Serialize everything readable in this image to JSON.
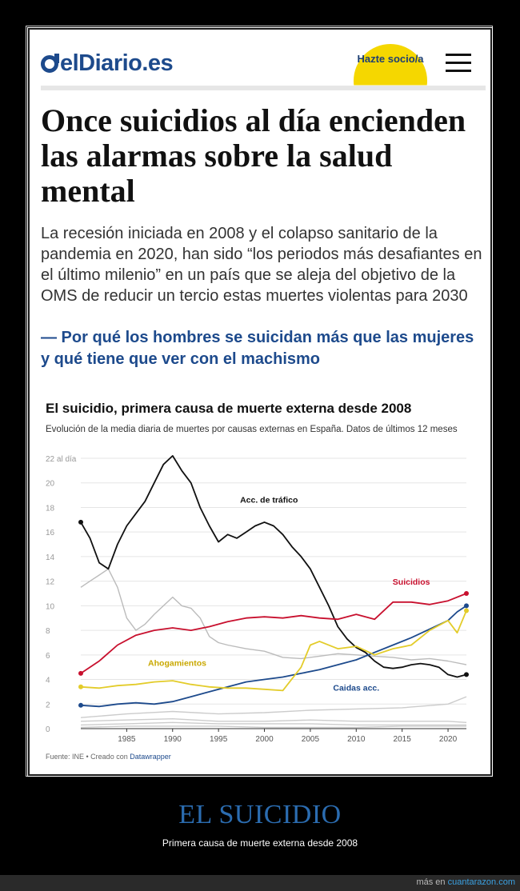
{
  "header": {
    "logo_text": "elDiario.es",
    "subscribe_label": "Hazte socio/a"
  },
  "article": {
    "headline": "Once suicidios al día encienden las alarmas sobre la salud mental",
    "lead": "La recesión iniciada en 2008 y el colapso sanitario de la pandemia en 2020, han sido “los periodos más desafiantes en el último milenio” en un país que se aleja del objetivo de la OMS de reducir un tercio estas muertes violentas para 2030",
    "related": "— Por qué los hombres se suicidan más que las mujeres y qué tiene que ver con el machismo"
  },
  "chart_data": {
    "type": "line",
    "title": "El suicidio, primera causa de muerte externa desde 2008",
    "subtitle": "Evolución de la media diaria de muertes por causas externas en España. Datos de últimos 12 meses",
    "x_ticks": [
      "1985",
      "1990",
      "1995",
      "2000",
      "2005",
      "2010",
      "2015",
      "2020"
    ],
    "y_ticks": [
      "0",
      "2",
      "4",
      "6",
      "8",
      "10",
      "12",
      "14",
      "16",
      "18",
      "20",
      "22 al día"
    ],
    "xlim": [
      1980,
      2022
    ],
    "ylim": [
      0,
      22
    ],
    "series": [
      {
        "name": "Acc. de tráfico",
        "color": "#111111",
        "x": [
          1980,
          1981,
          1982,
          1983,
          1984,
          1985,
          1986,
          1987,
          1988,
          1989,
          1990,
          1991,
          1992,
          1993,
          1994,
          1995,
          1996,
          1997,
          1998,
          1999,
          2000,
          2001,
          2002,
          2003,
          2004,
          2005,
          2006,
          2007,
          2008,
          2009,
          2010,
          2011,
          2012,
          2013,
          2014,
          2015,
          2016,
          2017,
          2018,
          2019,
          2020,
          2021,
          2022
        ],
        "y": [
          16.8,
          15.5,
          13.5,
          13.0,
          15.0,
          16.5,
          17.5,
          18.5,
          20.0,
          21.5,
          22.2,
          21.0,
          20.0,
          18.0,
          16.5,
          15.2,
          15.8,
          15.5,
          16.0,
          16.5,
          16.8,
          16.5,
          15.8,
          14.8,
          14.0,
          13.0,
          11.5,
          10.0,
          8.3,
          7.3,
          6.6,
          6.2,
          5.5,
          5.0,
          4.9,
          5.0,
          5.2,
          5.3,
          5.2,
          5.0,
          4.4,
          4.2,
          4.4
        ]
      },
      {
        "name": "Suicidios",
        "color": "#c8102e",
        "x": [
          1980,
          1982,
          1984,
          1986,
          1988,
          1990,
          1992,
          1994,
          1996,
          1998,
          2000,
          2002,
          2004,
          2006,
          2008,
          2010,
          2012,
          2014,
          2016,
          2018,
          2020,
          2022
        ],
        "y": [
          4.5,
          5.5,
          6.8,
          7.6,
          8.0,
          8.2,
          8.0,
          8.3,
          8.7,
          9.0,
          9.1,
          9.0,
          9.2,
          9.0,
          8.9,
          9.3,
          8.9,
          10.3,
          10.3,
          10.1,
          10.4,
          11.0
        ]
      },
      {
        "name": "Caidas acc.",
        "color": "#1d4a8c",
        "x": [
          1980,
          1982,
          1984,
          1986,
          1988,
          1990,
          1992,
          1994,
          1996,
          1998,
          2000,
          2002,
          2004,
          2006,
          2008,
          2010,
          2012,
          2014,
          2016,
          2018,
          2020,
          2021,
          2022
        ],
        "y": [
          1.9,
          1.8,
          2.0,
          2.1,
          2.0,
          2.2,
          2.6,
          3.0,
          3.4,
          3.8,
          4.0,
          4.2,
          4.5,
          4.8,
          5.2,
          5.6,
          6.2,
          6.8,
          7.4,
          8.1,
          8.8,
          9.5,
          10.0
        ]
      },
      {
        "name": "Ahogamientos",
        "color": "#e3cc2a",
        "x": [
          1980,
          1982,
          1984,
          1986,
          1988,
          1990,
          1992,
          1994,
          1996,
          1998,
          2000,
          2002,
          2004,
          2005,
          2006,
          2008,
          2010,
          2012,
          2014,
          2016,
          2018,
          2020,
          2021,
          2022
        ],
        "y": [
          3.4,
          3.3,
          3.5,
          3.6,
          3.8,
          3.9,
          3.6,
          3.4,
          3.3,
          3.3,
          3.2,
          3.1,
          5.0,
          6.8,
          7.1,
          6.5,
          6.7,
          6.0,
          6.5,
          6.8,
          8.0,
          8.8,
          7.8,
          9.6
        ]
      },
      {
        "name": "",
        "color": "#bbbbbb",
        "x": [
          1980,
          1981,
          1982,
          1983,
          1984,
          1985,
          1986,
          1987,
          1988,
          1989,
          1990,
          1991,
          1992,
          1993,
          1994,
          1995,
          1996,
          1998,
          2000,
          2002,
          2004,
          2006,
          2008,
          2010,
          2012,
          2014,
          2016,
          2018,
          2020,
          2022
        ],
        "y": [
          11.5,
          12.0,
          12.5,
          13.0,
          11.5,
          9.0,
          8.0,
          8.5,
          9.3,
          10.0,
          10.7,
          10.0,
          9.8,
          9.0,
          7.5,
          7.0,
          6.8,
          6.5,
          6.3,
          5.8,
          5.7,
          5.9,
          6.1,
          6.0,
          5.9,
          5.8,
          5.6,
          5.7,
          5.5,
          5.2
        ]
      },
      {
        "name": "",
        "color": "#cccccc",
        "x": [
          1980,
          1985,
          1990,
          1995,
          2000,
          2005,
          2010,
          2015,
          2020,
          2022
        ],
        "y": [
          0.9,
          1.2,
          1.4,
          1.2,
          1.3,
          1.5,
          1.6,
          1.7,
          2.0,
          2.6
        ]
      },
      {
        "name": "",
        "color": "#cccccc",
        "x": [
          1980,
          1985,
          1990,
          1995,
          2000,
          2005,
          2010,
          2015,
          2020,
          2022
        ],
        "y": [
          0.6,
          0.7,
          0.8,
          0.6,
          0.6,
          0.7,
          0.6,
          0.6,
          0.6,
          0.5
        ]
      },
      {
        "name": "",
        "color": "#cccccc",
        "x": [
          1980,
          1985,
          1990,
          1995,
          2000,
          2005,
          2010,
          2015,
          2020,
          2022
        ],
        "y": [
          0.3,
          0.4,
          0.5,
          0.4,
          0.4,
          0.4,
          0.3,
          0.3,
          0.3,
          0.3
        ]
      },
      {
        "name": "",
        "color": "#cccccc",
        "x": [
          1980,
          1985,
          1990,
          1995,
          2000,
          2005,
          2010,
          2015,
          2020,
          2022
        ],
        "y": [
          0.1,
          0.2,
          0.2,
          0.2,
          0.1,
          0.1,
          0.1,
          0.2,
          0.2,
          0.2
        ]
      }
    ],
    "labels": {
      "traffic": "Acc. de tráfico",
      "suicide": "Suicidios",
      "drown": "Ahogamientos",
      "falls": "Caidas acc."
    }
  },
  "source": {
    "prefix": "Fuente: INE • Creado con ",
    "tool": "Datawrapper"
  },
  "caption": {
    "title": "EL SUICIDIO",
    "subtitle": "Primera causa de muerte externa desde 2008"
  },
  "footer": {
    "prefix": "más en ",
    "site": "cuantarazon.com"
  }
}
